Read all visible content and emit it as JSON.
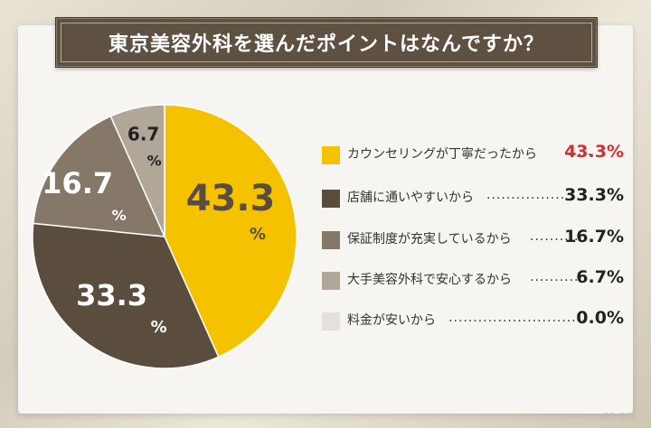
{
  "title": "東京美容外科を選んだポイントはなんですか？",
  "chart_data": {
    "type": "pie",
    "title": "東京美容外科を選んだポイントはなんですか？",
    "slices": [
      {
        "label": "カウンセリングが丁寧だったから",
        "value": 43.3,
        "value_text": "43.3%",
        "pie_number": "43.3",
        "color": "#f5c200",
        "value_color": "#d32f2f"
      },
      {
        "label": "店舗に通いやすいから",
        "value": 33.3,
        "value_text": "33.3%",
        "pie_number": "33.3",
        "color": "#5b4d3d",
        "value_color": "#222222"
      },
      {
        "label": "保証制度が充実しているから",
        "value": 16.7,
        "value_text": "16.7%",
        "pie_number": "16.7",
        "color": "#867868",
        "value_color": "#222222"
      },
      {
        "label": "大手美容外科で安心するから",
        "value": 6.7,
        "value_text": "6.7%",
        "pie_number": "6.7",
        "color": "#b1a799",
        "value_color": "#222222"
      },
      {
        "label": "料金が安いから",
        "value": 0.0,
        "value_text": "0.0%",
        "pie_number": "0.0",
        "color": "#e4e1dc",
        "value_color": "#222222"
      }
    ],
    "percent_sign": "%",
    "legend_position": "right"
  },
  "legend_dots": [
    ".....",
    "................",
    "..........",
    "..........",
    "............................"
  ],
  "logo_text": "GLOW"
}
